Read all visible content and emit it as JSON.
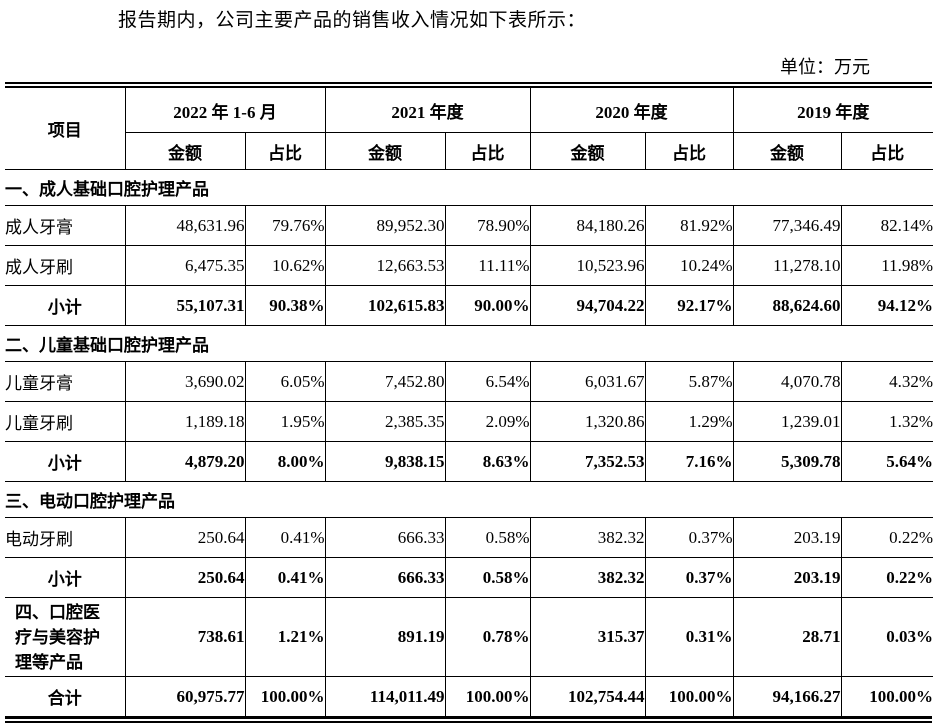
{
  "intro": "报告期内，公司主要产品的销售收入情况如下表所示：",
  "unit_label": "单位：万元",
  "table": {
    "item_header": "项目",
    "amount_label": "金额",
    "ratio_label": "占比",
    "periods": [
      "2022 年 1-6 月",
      "2021 年度",
      "2020 年度",
      "2019 年度"
    ],
    "rows": [
      {
        "type": "section",
        "label": "一、成人基础口腔护理产品"
      },
      {
        "type": "data",
        "label": "成人牙膏",
        "values": [
          "48,631.96",
          "79.76%",
          "89,952.30",
          "78.90%",
          "84,180.26",
          "81.92%",
          "77,346.49",
          "82.14%"
        ]
      },
      {
        "type": "data",
        "label": "成人牙刷",
        "values": [
          "6,475.35",
          "10.62%",
          "12,663.53",
          "11.11%",
          "10,523.96",
          "10.24%",
          "11,278.10",
          "11.98%"
        ]
      },
      {
        "type": "subtotal",
        "label": "小计",
        "values": [
          "55,107.31",
          "90.38%",
          "102,615.83",
          "90.00%",
          "94,704.22",
          "92.17%",
          "88,624.60",
          "94.12%"
        ]
      },
      {
        "type": "section",
        "label": "二、儿童基础口腔护理产品"
      },
      {
        "type": "data",
        "label": "儿童牙膏",
        "values": [
          "3,690.02",
          "6.05%",
          "7,452.80",
          "6.54%",
          "6,031.67",
          "5.87%",
          "4,070.78",
          "4.32%"
        ]
      },
      {
        "type": "data",
        "label": "儿童牙刷",
        "values": [
          "1,189.18",
          "1.95%",
          "2,385.35",
          "2.09%",
          "1,320.86",
          "1.29%",
          "1,239.01",
          "1.32%"
        ]
      },
      {
        "type": "subtotal",
        "label": "小计",
        "values": [
          "4,879.20",
          "8.00%",
          "9,838.15",
          "8.63%",
          "7,352.53",
          "7.16%",
          "5,309.78",
          "5.64%"
        ]
      },
      {
        "type": "section",
        "label": "三、电动口腔护理产品"
      },
      {
        "type": "data",
        "label": "电动牙刷",
        "values": [
          "250.64",
          "0.41%",
          "666.33",
          "0.58%",
          "382.32",
          "0.37%",
          "203.19",
          "0.22%"
        ]
      },
      {
        "type": "subtotal",
        "label": "小计",
        "values": [
          "250.64",
          "0.41%",
          "666.33",
          "0.58%",
          "382.32",
          "0.37%",
          "203.19",
          "0.22%"
        ]
      },
      {
        "type": "category",
        "label": "四、口腔医疗与美容护理等产品",
        "values": [
          "738.61",
          "1.21%",
          "891.19",
          "0.78%",
          "315.37",
          "0.31%",
          "28.71",
          "0.03%"
        ]
      },
      {
        "type": "total",
        "label": "合计",
        "values": [
          "60,975.77",
          "100.00%",
          "114,011.49",
          "100.00%",
          "102,754.44",
          "100.00%",
          "94,166.27",
          "100.00%"
        ]
      }
    ]
  }
}
